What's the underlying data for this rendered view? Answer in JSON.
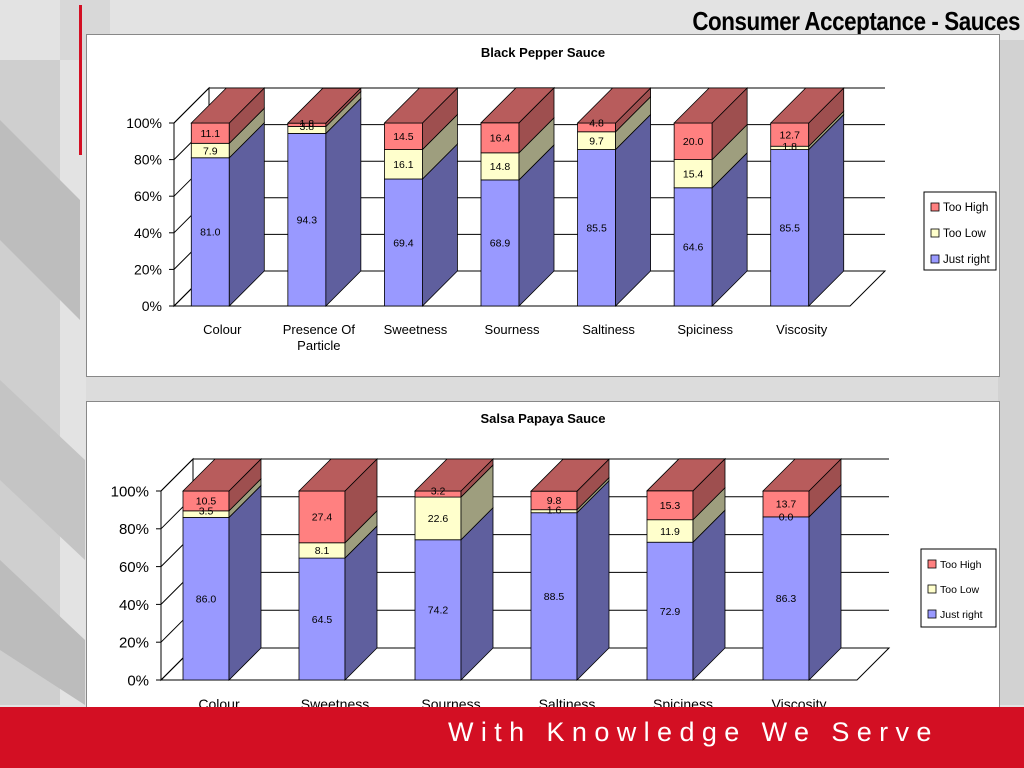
{
  "slide": {
    "title": "Consumer Acceptance - Sauces",
    "footer_text": "With Knowledge We Serve"
  },
  "colors": {
    "just_right": "#9999ff",
    "too_low": "#ffffcc",
    "too_high": "#ff8080",
    "brand_red": "#d30f23"
  },
  "chart_data": [
    {
      "type": "bar",
      "stacked": true,
      "three_d": true,
      "title": "Black Pepper Sauce",
      "categories": [
        "Colour",
        "Presence Of Particle",
        "Sweetness",
        "Sourness",
        "Saltiness",
        "Spiciness",
        "Viscosity"
      ],
      "series": [
        {
          "name": "Just right",
          "values": [
            81.0,
            94.3,
            69.4,
            68.9,
            85.5,
            64.6,
            85.5
          ]
        },
        {
          "name": "Too Low",
          "values": [
            7.9,
            3.8,
            16.1,
            14.8,
            9.7,
            15.4,
            1.8
          ]
        },
        {
          "name": "Too High",
          "values": [
            11.1,
            1.8,
            14.5,
            16.4,
            4.8,
            20.0,
            12.7
          ]
        }
      ],
      "yticks": [
        "0%",
        "20%",
        "40%",
        "60%",
        "80%",
        "100%"
      ],
      "ylim": [
        0,
        100
      ],
      "grid": true,
      "legend": "right"
    },
    {
      "type": "bar",
      "stacked": true,
      "three_d": true,
      "title": "Salsa Papaya Sauce",
      "categories": [
        "Colour",
        "Sweetness",
        "Sourness",
        "Saltiness",
        "Spiciness",
        "Viscosity"
      ],
      "series": [
        {
          "name": "Just right",
          "values": [
            86.0,
            64.5,
            74.2,
            88.5,
            72.9,
            86.3
          ]
        },
        {
          "name": "Too Low",
          "values": [
            3.5,
            8.1,
            22.6,
            1.6,
            11.9,
            0.0
          ]
        },
        {
          "name": "Too High",
          "values": [
            10.5,
            27.4,
            3.2,
            9.8,
            15.3,
            13.7
          ]
        }
      ],
      "yticks": [
        "0%",
        "20%",
        "40%",
        "60%",
        "80%",
        "100%"
      ],
      "ylim": [
        0,
        100
      ],
      "grid": true,
      "legend": "right"
    }
  ]
}
